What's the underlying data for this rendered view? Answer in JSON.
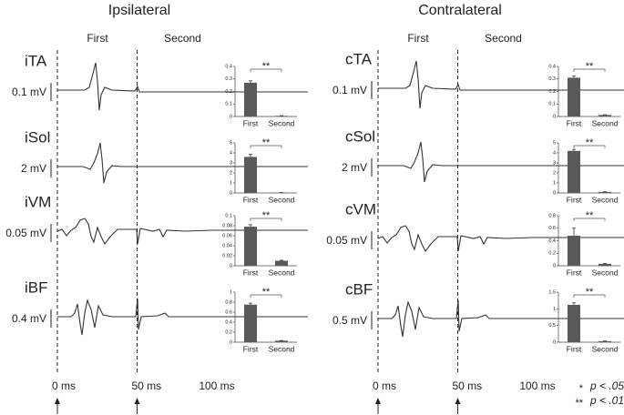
{
  "sides": [
    {
      "title": "Ipsilateral",
      "phases": [
        "First",
        "Second"
      ],
      "times": [
        "0 ms",
        "50 ms",
        "100 ms"
      ],
      "rows": [
        {
          "muscle": "iTA",
          "scale": "0.1 mV"
        },
        {
          "muscle": "iSol",
          "scale": "2 mV"
        },
        {
          "muscle": "iVM",
          "scale": "0.05 mV"
        },
        {
          "muscle": "iBF",
          "scale": "0.4 mV"
        }
      ]
    },
    {
      "title": "Contralateral",
      "phases": [
        "First",
        "Second"
      ],
      "times": [
        "0 ms",
        "50 ms",
        "100 ms"
      ],
      "rows": [
        {
          "muscle": "cTA",
          "scale": "0.1 mV"
        },
        {
          "muscle": "cSol",
          "scale": "2 mV"
        },
        {
          "muscle": "cVM",
          "scale": "0.05 mV"
        },
        {
          "muscle": "cBF",
          "scale": "0.5 mV"
        }
      ]
    }
  ],
  "significance": [
    {
      "stars": "*",
      "text": "p < .05"
    },
    {
      "stars": "**",
      "text": "p < .01"
    }
  ],
  "chart_data": [
    {
      "type": "bar",
      "categories": [
        "First",
        "Second"
      ],
      "values": [
        0.27,
        0.005
      ],
      "errors": [
        0.015,
        0.002
      ],
      "color": "#595959",
      "ylim": [
        0,
        0.4
      ],
      "yticks": [
        0,
        0.1,
        0.2,
        0.3,
        0.4
      ],
      "annotation": "**"
    },
    {
      "type": "bar",
      "categories": [
        "First",
        "Second"
      ],
      "values": [
        3.6,
        0.03
      ],
      "errors": [
        0.25,
        0.01
      ],
      "color": "#595959",
      "ylim": [
        0,
        5
      ],
      "yticks": [
        0,
        1,
        2,
        3,
        4,
        5
      ],
      "annotation": "**"
    },
    {
      "type": "bar",
      "categories": [
        "First",
        "Second"
      ],
      "values": [
        0.078,
        0.01
      ],
      "errors": [
        0.004,
        0.001
      ],
      "color": "#595959",
      "ylim": [
        0,
        0.1
      ],
      "yticks": [
        0,
        0.02,
        0.04,
        0.06,
        0.08,
        0.1
      ],
      "annotation": "**"
    },
    {
      "type": "bar",
      "categories": [
        "First",
        "Second"
      ],
      "values": [
        0.75,
        0.03
      ],
      "errors": [
        0.03,
        0.005
      ],
      "color": "#595959",
      "ylim": [
        0,
        1
      ],
      "yticks": [
        0,
        0.2,
        0.4,
        0.6,
        0.8,
        1
      ],
      "annotation": "**"
    },
    {
      "type": "bar",
      "categories": [
        "First",
        "Second"
      ],
      "values": [
        0.31,
        0.012
      ],
      "errors": [
        0.015,
        0.002
      ],
      "color": "#595959",
      "ylim": [
        0,
        0.4
      ],
      "yticks": [
        0,
        0.1,
        0.2,
        0.3,
        0.4
      ],
      "annotation": "**"
    },
    {
      "type": "bar",
      "categories": [
        "First",
        "Second"
      ],
      "values": [
        4.2,
        0.1
      ],
      "errors": [
        0.15,
        0.02
      ],
      "color": "#595959",
      "ylim": [
        0,
        5
      ],
      "yticks": [
        0,
        1,
        2,
        3,
        4,
        5
      ],
      "annotation": "**"
    },
    {
      "type": "bar",
      "categories": [
        "First",
        "Second"
      ],
      "values": [
        0.48,
        0.03
      ],
      "errors": [
        0.12,
        0.005
      ],
      "color": "#595959",
      "ylim": [
        0,
        0.8
      ],
      "yticks": [
        0,
        0.2,
        0.4,
        0.6,
        0.8
      ],
      "annotation": "**"
    },
    {
      "type": "bar",
      "categories": [
        "First",
        "Second"
      ],
      "values": [
        1.12,
        0.03
      ],
      "errors": [
        0.06,
        0.005
      ],
      "color": "#595959",
      "ylim": [
        0,
        1.5
      ],
      "yticks": [
        0,
        0.5,
        1,
        1.5
      ],
      "annotation": "**"
    }
  ]
}
